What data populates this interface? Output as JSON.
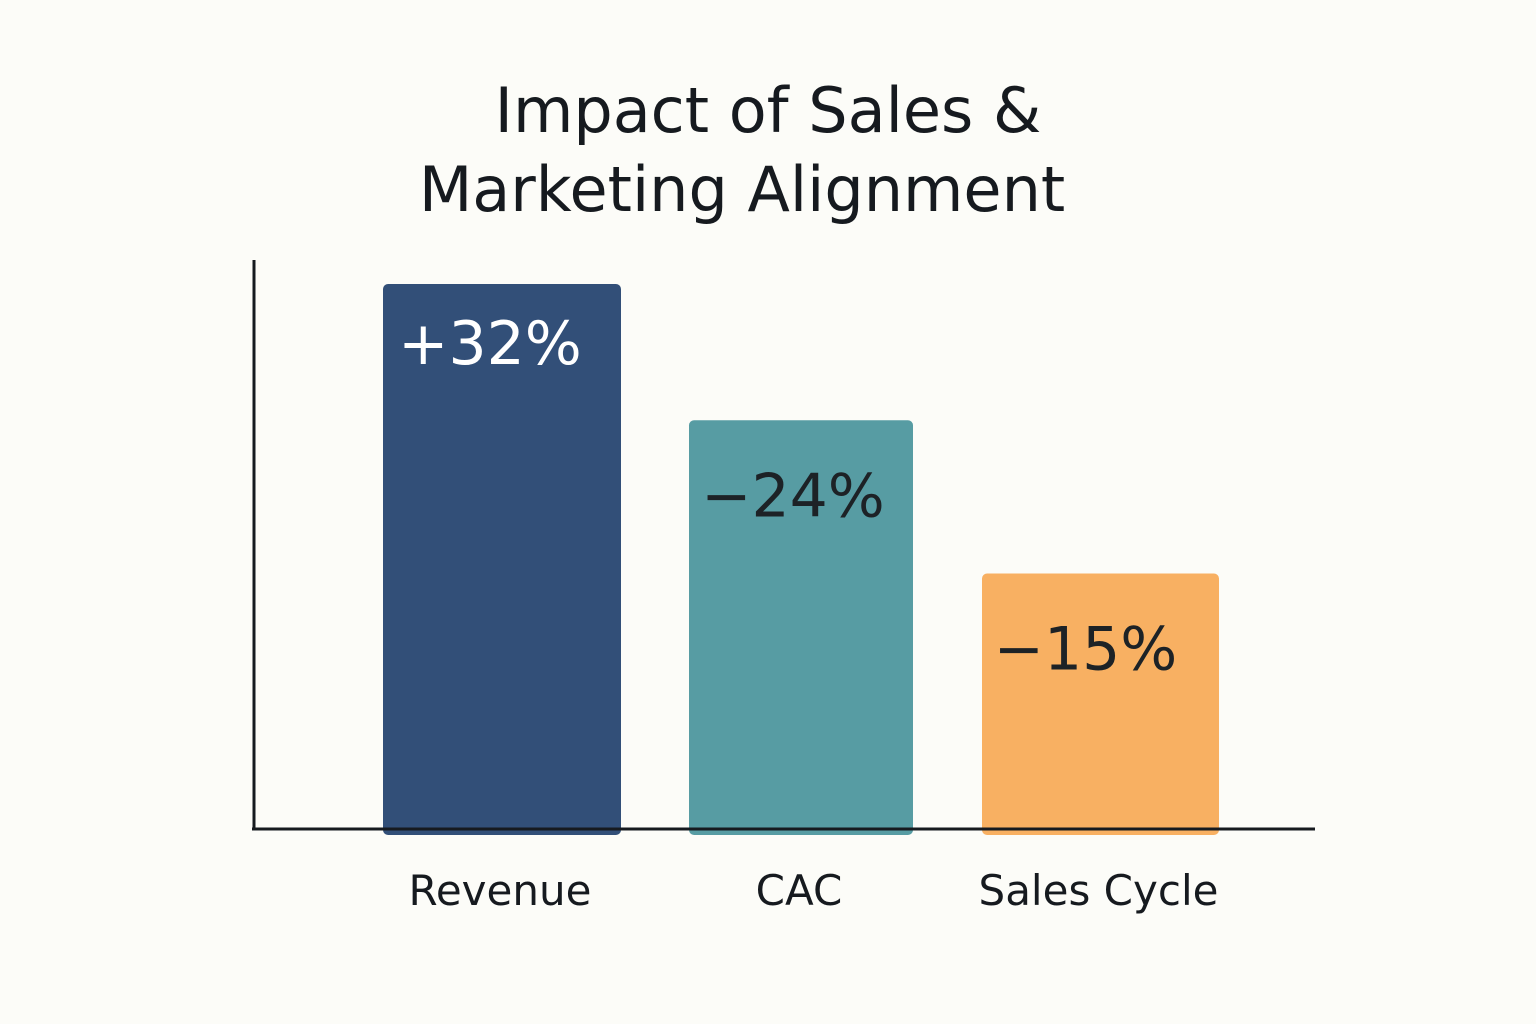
{
  "chart_data": {
    "type": "bar",
    "title": "Impact of Sales & Marketing Alignment",
    "title_lines": [
      "Impact of Sales &",
      "Marketing Alignment"
    ],
    "xlabel": "",
    "ylabel": "",
    "categories": [
      "Revenue",
      "CAC",
      "Sales Cycle"
    ],
    "values": [
      32,
      -24,
      -15
    ],
    "value_labels": [
      "+32%",
      "−24%",
      "−15%"
    ],
    "bar_colors": [
      "#324f78",
      "#579ca3",
      "#f8b062"
    ],
    "label_colors": [
      "#ffffff",
      "#1d2226",
      "#1d2226"
    ],
    "magnitude_range": [
      0,
      34
    ],
    "grid": false,
    "legend": "none"
  }
}
